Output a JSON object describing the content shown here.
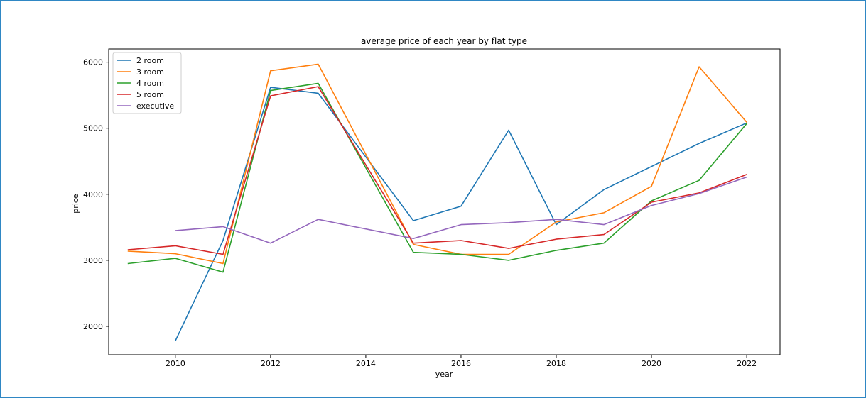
{
  "chart_data": {
    "type": "line",
    "title": "average price of each year by flat type",
    "xlabel": "year",
    "ylabel": "price",
    "xlim": [
      2008.6,
      2022.7
    ],
    "ylim": [
      1570,
      6200
    ],
    "xticks": [
      2010,
      2012,
      2014,
      2016,
      2018,
      2020,
      2022
    ],
    "yticks": [
      2000,
      3000,
      4000,
      5000,
      6000
    ],
    "grid": false,
    "legend_position": "top-left",
    "series": [
      {
        "name": "2 room",
        "color": "#1f77b4",
        "x": [
          2010,
          2011,
          2012,
          2013,
          2015,
          2016,
          2017,
          2018,
          2019,
          2020,
          2021,
          2022
        ],
        "y": [
          1780,
          3300,
          5620,
          5530,
          3600,
          3820,
          4970,
          3540,
          4070,
          4420,
          4770,
          5080
        ]
      },
      {
        "name": "3 room",
        "color": "#ff7f0e",
        "x": [
          2009,
          2010,
          2011,
          2012,
          2013,
          2015,
          2016,
          2017,
          2018,
          2019,
          2020,
          2021,
          2022
        ],
        "y": [
          3140,
          3100,
          2950,
          5870,
          5970,
          3240,
          3090,
          3090,
          3580,
          3720,
          4120,
          5930,
          5090
        ]
      },
      {
        "name": "4 room",
        "color": "#2ca02c",
        "x": [
          2009,
          2010,
          2011,
          2012,
          2013,
          2015,
          2016,
          2017,
          2018,
          2019,
          2020,
          2021,
          2022
        ],
        "y": [
          2950,
          3030,
          2820,
          5570,
          5680,
          3120,
          3090,
          3000,
          3150,
          3260,
          3900,
          4210,
          5070
        ]
      },
      {
        "name": "5 room",
        "color": "#d62728",
        "x": [
          2009,
          2010,
          2011,
          2012,
          2013,
          2015,
          2016,
          2017,
          2018,
          2019,
          2020,
          2021,
          2022
        ],
        "y": [
          3160,
          3220,
          3090,
          5490,
          5630,
          3260,
          3300,
          3180,
          3320,
          3390,
          3880,
          4020,
          4300
        ]
      },
      {
        "name": " executive",
        "color": "#9467bd",
        "x": [
          2010,
          2011,
          2012,
          2013,
          2015,
          2016,
          2017,
          2018,
          2019,
          2020,
          2021,
          2022
        ],
        "y": [
          3450,
          3510,
          3260,
          3620,
          3330,
          3540,
          3570,
          3620,
          3540,
          3830,
          4010,
          4260
        ]
      }
    ]
  }
}
